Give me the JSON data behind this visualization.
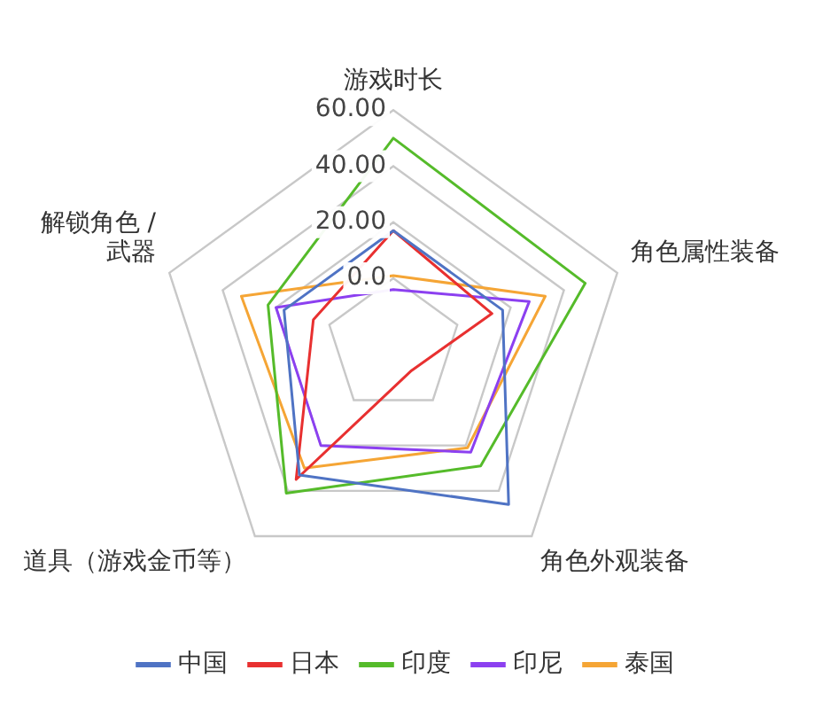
{
  "chart_data": {
    "type": "radar",
    "categories": [
      "游戏时长",
      "角色属性装备",
      "角色外观装备",
      "道具（游戏金币等）",
      "解锁角色 /\n武器"
    ],
    "series": [
      {
        "name": "中国",
        "color": "#4f73c4",
        "values": [
          17,
          17,
          46,
          33,
          17
        ]
      },
      {
        "name": "日本",
        "color": "#e83030",
        "values": [
          17,
          13,
          -13,
          35,
          6
        ]
      },
      {
        "name": "印度",
        "color": "#55bb2a",
        "values": [
          50,
          48,
          29,
          41,
          23
        ]
      },
      {
        "name": "印尼",
        "color": "#8c40f0",
        "values": [
          -4,
          27,
          23,
          20,
          20
        ]
      },
      {
        "name": "泰国",
        "color": "#f5a535",
        "values": [
          1,
          33,
          21,
          30,
          33
        ]
      }
    ],
    "ylim": [
      -24,
      60
    ],
    "yticks": [
      {
        "value": 0,
        "label": "0.0"
      },
      {
        "value": 20,
        "label": "20.00"
      },
      {
        "value": 40,
        "label": "40.00"
      },
      {
        "value": 60,
        "label": "60.00"
      }
    ],
    "grid": true,
    "legend": "bottom",
    "marker": "none",
    "line_style": "solid"
  }
}
